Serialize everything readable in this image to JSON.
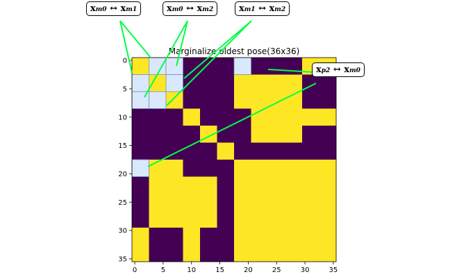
{
  "chart_data": {
    "type": "heatmap",
    "title": "Marginalize oldest pose(36x36)",
    "size": 36,
    "colormap": {
      "low": "#440154",
      "high": "#fde725"
    },
    "highlight_color": "#dae8fc",
    "highlight_border": "#6c8ebf",
    "connector_color": "#00ff44",
    "xticks": [
      0,
      5,
      10,
      15,
      20,
      25,
      30,
      35
    ],
    "yticks": [
      0,
      5,
      10,
      15,
      20,
      25,
      30,
      35
    ],
    "matrix_rule": "Yellow (1) where row/col blocks share a constraint; purple (0) otherwise. Block boundaries at 0,3,6,9,12,15,18,21,24,30,36.",
    "yellow_blocks": [
      [
        0,
        0
      ],
      [
        0,
        1
      ],
      [
        0,
        2
      ],
      [
        1,
        0
      ],
      [
        1,
        1
      ],
      [
        1,
        2
      ],
      [
        2,
        0
      ],
      [
        2,
        1
      ],
      [
        2,
        2
      ],
      [
        3,
        3
      ],
      [
        4,
        4
      ],
      [
        5,
        5
      ],
      [
        0,
        6
      ],
      [
        6,
        0
      ],
      [
        1,
        6
      ],
      [
        6,
        1
      ],
      [
        2,
        6
      ],
      [
        6,
        2
      ],
      [
        1,
        7
      ],
      [
        7,
        1
      ],
      [
        2,
        7
      ],
      [
        7,
        2
      ],
      [
        3,
        7
      ],
      [
        7,
        3
      ],
      [
        4,
        7
      ],
      [
        7,
        4
      ],
      [
        1,
        8
      ],
      [
        8,
        1
      ],
      [
        2,
        8
      ],
      [
        8,
        2
      ],
      [
        3,
        8
      ],
      [
        8,
        3
      ],
      [
        4,
        8
      ],
      [
        8,
        4
      ],
      [
        0,
        9
      ],
      [
        9,
        0
      ],
      [
        0,
        10
      ],
      [
        10,
        0
      ],
      [
        6,
        6
      ],
      [
        7,
        7
      ],
      [
        8,
        8
      ],
      [
        9,
        9
      ],
      [
        10,
        10
      ],
      [
        6,
        7
      ],
      [
        7,
        6
      ],
      [
        6,
        8
      ],
      [
        8,
        6
      ],
      [
        6,
        9
      ],
      [
        9,
        6
      ],
      [
        7,
        8
      ],
      [
        8,
        7
      ],
      [
        7,
        9
      ],
      [
        9,
        7
      ],
      [
        8,
        9
      ],
      [
        9,
        8
      ],
      [
        9,
        10
      ],
      [
        10,
        9
      ],
      [
        8,
        10
      ],
      [
        10,
        8
      ],
      [
        3,
        9
      ],
      [
        9,
        3
      ],
      [
        4,
        10
      ],
      [
        10,
        4
      ]
    ],
    "highlight_blocks": [
      [
        0,
        1
      ],
      [
        0,
        2
      ],
      [
        1,
        0
      ],
      [
        2,
        0
      ],
      [
        1,
        2
      ],
      [
        2,
        1
      ],
      [
        0,
        6
      ],
      [
        6,
        0
      ]
    ],
    "annotations": [
      {
        "id": "m0m1",
        "label_lhs": "x",
        "sub_lhs": "m0",
        "label_rhs": "x",
        "sub_rhs": "m1"
      },
      {
        "id": "m0m2",
        "label_lhs": "x",
        "sub_lhs": "m0",
        "label_rhs": "x",
        "sub_rhs": "m2"
      },
      {
        "id": "m1m2",
        "label_lhs": "x",
        "sub_lhs": "m1",
        "label_rhs": "x",
        "sub_rhs": "m2"
      },
      {
        "id": "p2m0",
        "label_lhs": "x",
        "sub_lhs": "p2",
        "label_rhs": "x",
        "sub_rhs": "m0"
      }
    ],
    "arrow_symbol": "↔"
  }
}
